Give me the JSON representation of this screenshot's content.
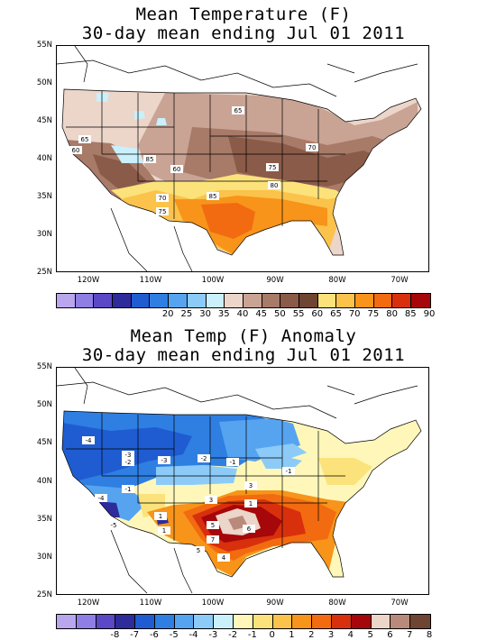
{
  "top_panel": {
    "title_line1": "Mean Temperature (F)",
    "title_line2": "30-day mean ending Jul 01 2011",
    "lat_labels": [
      "55N",
      "50N",
      "45N",
      "40N",
      "35N",
      "30N",
      "25N"
    ],
    "lon_labels": [
      "120W",
      "110W",
      "100W",
      "90W",
      "80W",
      "70W"
    ],
    "contour_labels": [
      "65",
      "65",
      "60",
      "85",
      "60",
      "70",
      "75",
      "80",
      "85",
      "70",
      "75"
    ],
    "colorbar": {
      "colors": [
        "#b9a6ee",
        "#8f7ee3",
        "#5a48c6",
        "#2e2b9b",
        "#1f5cd1",
        "#2f7fe2",
        "#56a4f0",
        "#8ccbf7",
        "#c9f0fb",
        "#ecd5c9",
        "#c9a394",
        "#a87a68",
        "#8a5b48",
        "#6e4433",
        "#fbe27a",
        "#fbc34b",
        "#f79419",
        "#f26b10",
        "#d8300d",
        "#a5070a"
      ],
      "labels": [
        "20",
        "25",
        "30",
        "35",
        "40",
        "45",
        "50",
        "55",
        "60",
        "65",
        "70",
        "75",
        "80",
        "85",
        "90"
      ]
    }
  },
  "bottom_panel": {
    "title_line1": "Mean Temp (F) Anomaly",
    "title_line2": "30-day mean ending Jul 01 2011",
    "lat_labels": [
      "55N",
      "50N",
      "45N",
      "40N",
      "35N",
      "30N",
      "25N"
    ],
    "lon_labels": [
      "120W",
      "110W",
      "100W",
      "90W",
      "80W",
      "70W"
    ],
    "contour_labels": [
      "-4",
      "-3",
      "-3",
      "-2",
      "-1",
      "-2",
      "-4",
      "-1",
      "-5",
      "1",
      "3",
      "3",
      "5",
      "7",
      "6",
      "5",
      "4",
      "1",
      "1",
      "-1"
    ],
    "colorbar": {
      "colors": [
        "#b9a6ee",
        "#8f7ee3",
        "#5a48c6",
        "#2e2b9b",
        "#1f5cd1",
        "#2f7fe2",
        "#56a4f0",
        "#8ccbf7",
        "#c9f0fb",
        "#fef7b9",
        "#fbe27a",
        "#fbc34b",
        "#f79419",
        "#f26b10",
        "#d8300d",
        "#a5070a",
        "#ecd5c9",
        "#b98a7c",
        "#6e4433"
      ],
      "labels": [
        "-8",
        "-7",
        "-6",
        "-5",
        "-4",
        "-3",
        "-2",
        "-1",
        "0",
        "1",
        "2",
        "3",
        "4",
        "5",
        "6",
        "7",
        "8"
      ]
    }
  }
}
